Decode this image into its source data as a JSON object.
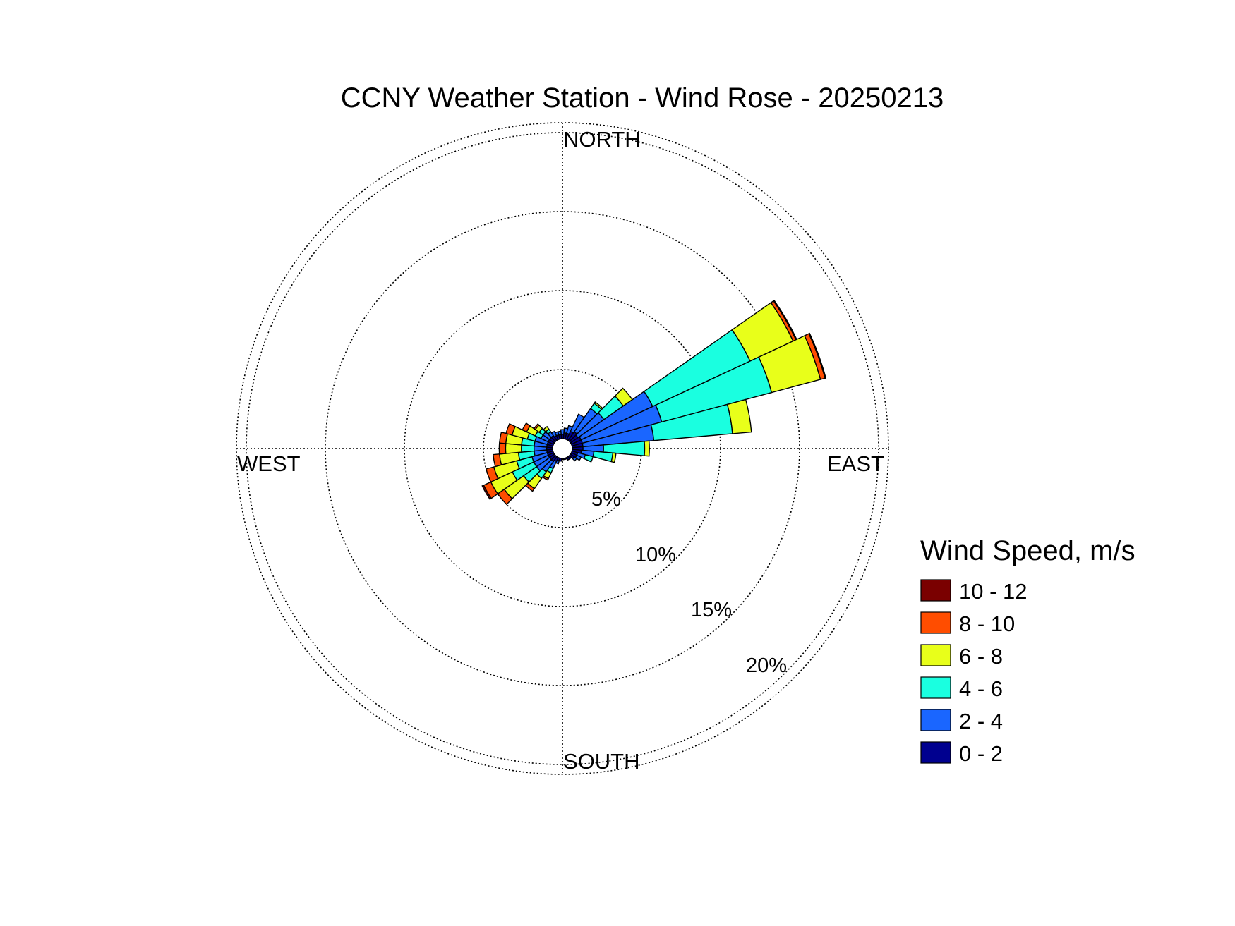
{
  "chart_data": {
    "type": "wind-rose",
    "title": "CCNY Weather Station - Wind Rose - 20250213",
    "directions": {
      "north": "NORTH",
      "south": "SOUTH",
      "east": "EAST",
      "west": "WEST"
    },
    "rings": [
      {
        "value": 5,
        "label": "5%"
      },
      {
        "value": 10,
        "label": "10%"
      },
      {
        "value": 15,
        "label": "15%"
      },
      {
        "value": 20,
        "label": "20%"
      }
    ],
    "rmax": 20,
    "legend": {
      "title": "Wind Speed, m/s",
      "bins": [
        {
          "label": "10 - 12",
          "color": "#7a0000"
        },
        {
          "label": "8 - 10",
          "color": "#ff4d00"
        },
        {
          "label": "6 - 8",
          "color": "#e8ff1a"
        },
        {
          "label": "4 - 6",
          "color": "#1affe0"
        },
        {
          "label": "2 - 4",
          "color": "#1a66ff"
        },
        {
          "label": "0 - 2",
          "color": "#00008f"
        }
      ]
    },
    "speed_bins": [
      "0 - 2",
      "2 - 4",
      "4 - 6",
      "6 - 8",
      "8 - 10",
      "10 - 12"
    ],
    "sector_width_deg": 10,
    "sectors": [
      {
        "dir": 10,
        "values": [
          1.0,
          0.3,
          0,
          0,
          0,
          0
        ]
      },
      {
        "dir": 20,
        "values": [
          1.0,
          0.5,
          0,
          0,
          0,
          0
        ]
      },
      {
        "dir": 30,
        "values": [
          1.2,
          1.2,
          0,
          0,
          0,
          0
        ]
      },
      {
        "dir": 40,
        "values": [
          1.3,
          1.8,
          0.4,
          0.1,
          0,
          0
        ]
      },
      {
        "dir": 50,
        "values": [
          1.2,
          2.0,
          1.5,
          0.7,
          0,
          0
        ]
      },
      {
        "dir": 60,
        "values": [
          1.3,
          5.0,
          6.8,
          3.0,
          0.2,
          0.05
        ]
      },
      {
        "dir": 70,
        "values": [
          1.3,
          5.2,
          7.2,
          3.2,
          0.3,
          0.05
        ]
      },
      {
        "dir": 80,
        "values": [
          1.3,
          4.5,
          5.0,
          1.2,
          0,
          0
        ]
      },
      {
        "dir": 90,
        "values": [
          1.3,
          1.3,
          2.6,
          0.3,
          0,
          0
        ]
      },
      {
        "dir": 100,
        "values": [
          1.2,
          0.8,
          1.2,
          0.2,
          0,
          0
        ]
      },
      {
        "dir": 110,
        "values": [
          1.0,
          0.5,
          0.5,
          0,
          0,
          0
        ]
      },
      {
        "dir": 120,
        "values": [
          1.0,
          0.3,
          0,
          0,
          0,
          0
        ]
      },
      {
        "dir": 130,
        "values": [
          0.9,
          0.2,
          0,
          0,
          0,
          0
        ]
      },
      {
        "dir": 140,
        "values": [
          0.8,
          0,
          0,
          0,
          0,
          0
        ]
      },
      {
        "dir": 150,
        "values": [
          0.8,
          0,
          0,
          0,
          0,
          0
        ]
      },
      {
        "dir": 160,
        "values": [
          0.7,
          0,
          0,
          0,
          0,
          0
        ]
      },
      {
        "dir": 170,
        "values": [
          0.7,
          0,
          0,
          0,
          0,
          0
        ]
      },
      {
        "dir": 180,
        "values": [
          0.7,
          0,
          0,
          0,
          0,
          0
        ]
      },
      {
        "dir": 190,
        "values": [
          0.8,
          0,
          0,
          0,
          0,
          0
        ]
      },
      {
        "dir": 200,
        "values": [
          0.8,
          0.2,
          0,
          0,
          0,
          0
        ]
      },
      {
        "dir": 210,
        "values": [
          0.9,
          0.5,
          0.3,
          0.4,
          0.1,
          0
        ]
      },
      {
        "dir": 220,
        "values": [
          1.0,
          0.8,
          0.5,
          0.8,
          0.2,
          0
        ]
      },
      {
        "dir": 230,
        "values": [
          1.0,
          1.0,
          1.0,
          1.5,
          0.5,
          0
        ]
      },
      {
        "dir": 240,
        "values": [
          1.0,
          1.0,
          1.5,
          1.5,
          0.5,
          0.1
        ]
      },
      {
        "dir": 250,
        "values": [
          1.0,
          1.0,
          1.0,
          1.5,
          0.5,
          0
        ]
      },
      {
        "dir": 260,
        "values": [
          1.0,
          0.8,
          1.0,
          1.2,
          0.4,
          0
        ]
      },
      {
        "dir": 270,
        "values": [
          1.0,
          0.8,
          0.8,
          1.0,
          0.4,
          0
        ]
      },
      {
        "dir": 280,
        "values": [
          1.0,
          0.8,
          0.8,
          1.0,
          0.4,
          0
        ]
      },
      {
        "dir": 290,
        "values": [
          1.0,
          0.8,
          0.5,
          1.0,
          0.4,
          0
        ]
      },
      {
        "dir": 300,
        "values": [
          1.0,
          0.5,
          0.4,
          0.6,
          0.3,
          0
        ]
      },
      {
        "dir": 310,
        "values": [
          1.0,
          0.5,
          0.3,
          0.3,
          0.1,
          0
        ]
      },
      {
        "dir": 320,
        "values": [
          1.0,
          0.3,
          0.2,
          0.2,
          0,
          0
        ]
      },
      {
        "dir": 330,
        "values": [
          0.9,
          0.3,
          0,
          0,
          0,
          0
        ]
      },
      {
        "dir": 340,
        "values": [
          0.9,
          0.2,
          0,
          0,
          0,
          0
        ]
      },
      {
        "dir": 350,
        "values": [
          0.9,
          0.2,
          0,
          0,
          0,
          0
        ]
      },
      {
        "dir": 0,
        "values": [
          0.9,
          0.3,
          0,
          0,
          0,
          0
        ]
      }
    ]
  }
}
